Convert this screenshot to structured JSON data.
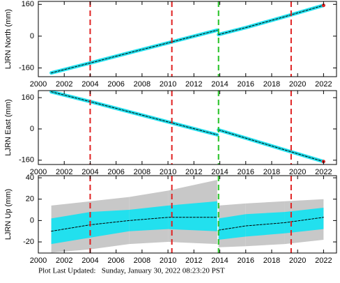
{
  "chart_data": [
    {
      "type": "line",
      "ylabel": "LJRN North (mm)",
      "xlim": [
        2000,
        2023
      ],
      "ylim": [
        -204,
        175
      ],
      "xticks": [
        2000,
        2002,
        2004,
        2006,
        2008,
        2010,
        2012,
        2014,
        2016,
        2018,
        2020,
        2022
      ],
      "yticks": [
        -160,
        0,
        160
      ],
      "x": [
        2001,
        2004,
        2007,
        2010,
        2013.8,
        2013.85,
        2013.9,
        2016,
        2019,
        2022
      ],
      "series": [
        {
          "color": "#22e0ee",
          "width": 5,
          "values": [
            -185,
            -135,
            -84,
            -34,
            30,
            null,
            8,
            43,
            98,
            155
          ]
        },
        {
          "color": "#000000",
          "width": 1,
          "dash": true,
          "values": [
            -185,
            -135,
            -84,
            -34,
            30,
            null,
            8,
            43,
            98,
            155
          ]
        }
      ],
      "events": [
        {
          "x": 2004,
          "color": "#e02020"
        },
        {
          "x": 2010.3,
          "color": "#e02020"
        },
        {
          "x": 2013.9,
          "color": "#20c020"
        },
        {
          "x": 2019.5,
          "color": "#e02020"
        }
      ],
      "end_point": {
        "x": 2022,
        "y": 155,
        "color": "#e02020"
      }
    },
    {
      "type": "line",
      "ylabel": "LJRN East (mm)",
      "xlim": [
        2000,
        2023
      ],
      "ylim": [
        -182,
        196
      ],
      "xticks": [
        2000,
        2002,
        2004,
        2006,
        2008,
        2010,
        2012,
        2014,
        2016,
        2018,
        2020,
        2022
      ],
      "yticks": [
        -160,
        0,
        160
      ],
      "x": [
        2001,
        2004,
        2007,
        2010,
        2013.8,
        2013.85,
        2013.9,
        2016,
        2019,
        2022
      ],
      "series": [
        {
          "color": "#22e0ee",
          "width": 5,
          "values": [
            190,
            140,
            88,
            36,
            -30,
            null,
            -5,
            -47,
            -107,
            -167
          ]
        },
        {
          "color": "#000000",
          "width": 1,
          "dash": true,
          "values": [
            190,
            140,
            88,
            36,
            -30,
            null,
            -5,
            -47,
            -107,
            -167
          ]
        }
      ],
      "events": [
        {
          "x": 2004,
          "color": "#e02020"
        },
        {
          "x": 2010.3,
          "color": "#e02020"
        },
        {
          "x": 2013.9,
          "color": "#20c020"
        },
        {
          "x": 2019.5,
          "color": "#e02020"
        }
      ],
      "end_point": {
        "x": 2022,
        "y": -167,
        "color": "#e02020"
      }
    },
    {
      "type": "line",
      "ylabel": "LJRN Up (mm)",
      "xlim": [
        2000,
        2023
      ],
      "ylim": [
        -30.4,
        42
      ],
      "xticks": [
        2000,
        2002,
        2004,
        2006,
        2008,
        2010,
        2012,
        2014,
        2016,
        2018,
        2020,
        2022
      ],
      "yticks": [
        -20,
        0,
        20,
        40
      ],
      "x": [
        2001,
        2004,
        2007,
        2010,
        2013.8,
        2013.85,
        2013.9,
        2016,
        2019,
        2022
      ],
      "bands": [
        {
          "color": "#c8c8c8",
          "low": [
            -30,
            -27,
            -22,
            -20,
            -22,
            null,
            -25,
            -24,
            -22,
            -18
          ],
          "high": [
            14,
            18,
            22,
            28,
            38,
            null,
            14,
            16,
            18,
            20
          ]
        },
        {
          "color": "#22e0ee",
          "low": [
            -22,
            -16,
            -10,
            -8,
            -10,
            null,
            -18,
            -15,
            -12,
            -8
          ],
          "high": [
            2,
            8,
            10,
            14,
            18,
            null,
            2,
            6,
            8,
            12
          ]
        }
      ],
      "series": [
        {
          "color": "#000000",
          "width": 1,
          "dash": true,
          "values": [
            -10,
            -4,
            0,
            3,
            3,
            null,
            -9,
            -5,
            -2,
            3
          ]
        }
      ],
      "events": [
        {
          "x": 2004,
          "color": "#e02020"
        },
        {
          "x": 2010.3,
          "color": "#e02020"
        },
        {
          "x": 2013.9,
          "color": "#20c020"
        },
        {
          "x": 2019.5,
          "color": "#e02020"
        }
      ]
    }
  ],
  "footer": "Plot Last Updated:   Sunday, January 30, 2022 08:23:20 PST"
}
